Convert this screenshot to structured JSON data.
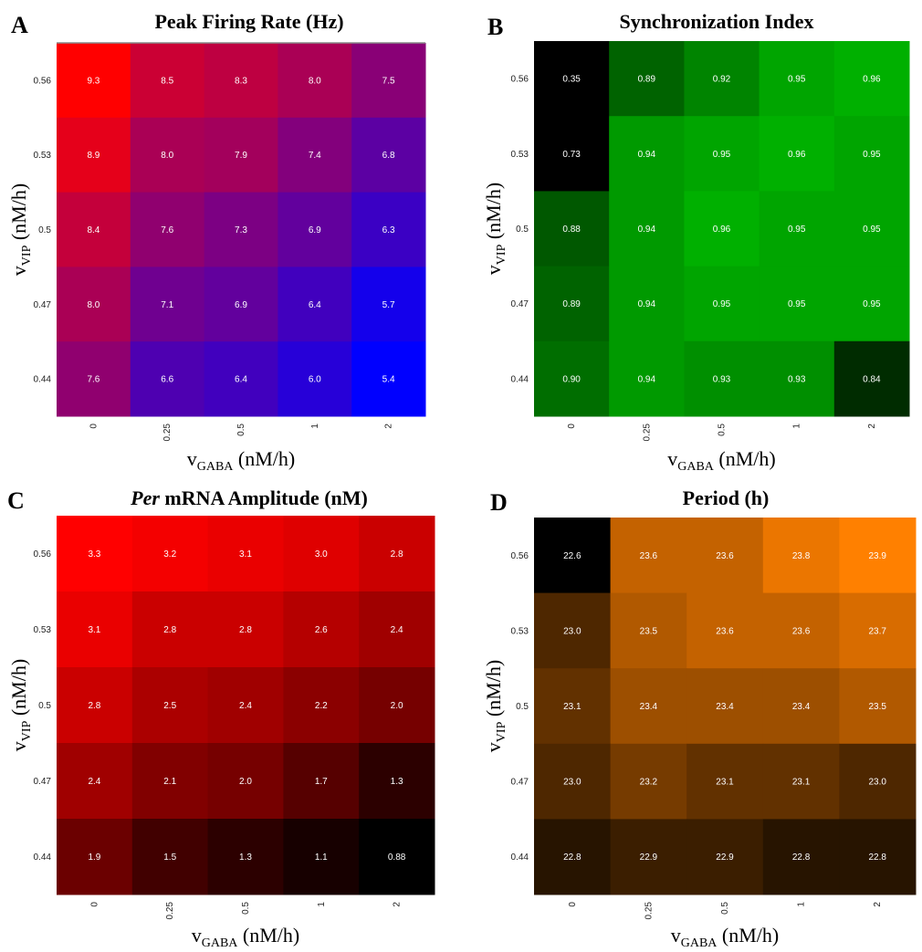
{
  "figure": {
    "x_title": {
      "main": "v",
      "sub": "GABA",
      "units": " (nM/h)"
    },
    "y_title": {
      "main": "v",
      "sub": "VIP",
      "units": " (nM/h)"
    }
  },
  "chart_data": [
    {
      "panel": "A",
      "type": "heatmap",
      "title": "Peak Firing Rate (Hz)",
      "title_italic": "",
      "title_rest": "",
      "x_categories": [
        "0",
        "0.25",
        "0.5",
        "1",
        "2"
      ],
      "y_categories": [
        "0.56",
        "0.53",
        "0.5",
        "0.47",
        "0.44"
      ],
      "values": [
        [
          "9.3",
          "8.5",
          "8.3",
          "8.0",
          "7.5"
        ],
        [
          "8.9",
          "8.0",
          "7.9",
          "7.4",
          "6.8"
        ],
        [
          "8.4",
          "7.6",
          "7.3",
          "6.9",
          "6.3"
        ],
        [
          "8.0",
          "7.1",
          "6.9",
          "6.4",
          "5.7"
        ],
        [
          "7.6",
          "6.6",
          "6.4",
          "6.0",
          "5.4"
        ]
      ],
      "color_low": "#0000ff",
      "color_high": "#ff0000",
      "vmin": 5.4,
      "vmax": 9.3
    },
    {
      "panel": "B",
      "type": "heatmap",
      "title": "Synchronization Index",
      "title_italic": "",
      "title_rest": "",
      "x_categories": [
        "0",
        "0.25",
        "0.5",
        "1",
        "2"
      ],
      "y_categories": [
        "0.56",
        "0.53",
        "0.5",
        "0.47",
        "0.44"
      ],
      "values": [
        [
          "0.35",
          "0.89",
          "0.92",
          "0.95",
          "0.96"
        ],
        [
          "0.73",
          "0.94",
          "0.95",
          "0.96",
          "0.95"
        ],
        [
          "0.88",
          "0.94",
          "0.96",
          "0.95",
          "0.95"
        ],
        [
          "0.89",
          "0.94",
          "0.95",
          "0.95",
          "0.95"
        ],
        [
          "0.90",
          "0.94",
          "0.93",
          "0.93",
          "0.84"
        ]
      ],
      "color_low": "#000000",
      "color_high": "#00b000",
      "vmin": 0.8,
      "vmax": 0.96
    },
    {
      "panel": "C",
      "type": "heatmap",
      "title": "",
      "title_italic": "Per",
      "title_rest": " mRNA Amplitude (nM)",
      "x_categories": [
        "0",
        "0.25",
        "0.5",
        "1",
        "2"
      ],
      "y_categories": [
        "0.56",
        "0.53",
        "0.5",
        "0.47",
        "0.44"
      ],
      "values": [
        [
          "3.3",
          "3.2",
          "3.1",
          "3.0",
          "2.8"
        ],
        [
          "3.1",
          "2.8",
          "2.8",
          "2.6",
          "2.4"
        ],
        [
          "2.8",
          "2.5",
          "2.4",
          "2.2",
          "2.0"
        ],
        [
          "2.4",
          "2.1",
          "2.0",
          "1.7",
          "1.3"
        ],
        [
          "1.9",
          "1.5",
          "1.3",
          "1.1",
          "0.88"
        ]
      ],
      "color_low": "#000000",
      "color_high": "#ff0000",
      "vmin": 0.88,
      "vmax": 3.3
    },
    {
      "panel": "D",
      "type": "heatmap",
      "title": "Period (h)",
      "title_italic": "",
      "title_rest": "",
      "x_categories": [
        "0",
        "0.25",
        "0.5",
        "1",
        "2"
      ],
      "y_categories": [
        "0.56",
        "0.53",
        "0.5",
        "0.47",
        "0.44"
      ],
      "values": [
        [
          "22.6",
          "23.6",
          "23.6",
          "23.8",
          "23.9"
        ],
        [
          "23.0",
          "23.5",
          "23.6",
          "23.6",
          "23.7"
        ],
        [
          "23.1",
          "23.4",
          "23.4",
          "23.4",
          "23.5"
        ],
        [
          "23.0",
          "23.2",
          "23.1",
          "23.1",
          "23.0"
        ],
        [
          "22.8",
          "22.9",
          "22.9",
          "22.8",
          "22.8"
        ]
      ],
      "color_low": "#000000",
      "color_high": "#ff8000",
      "vmin": 22.6,
      "vmax": 23.9
    }
  ]
}
